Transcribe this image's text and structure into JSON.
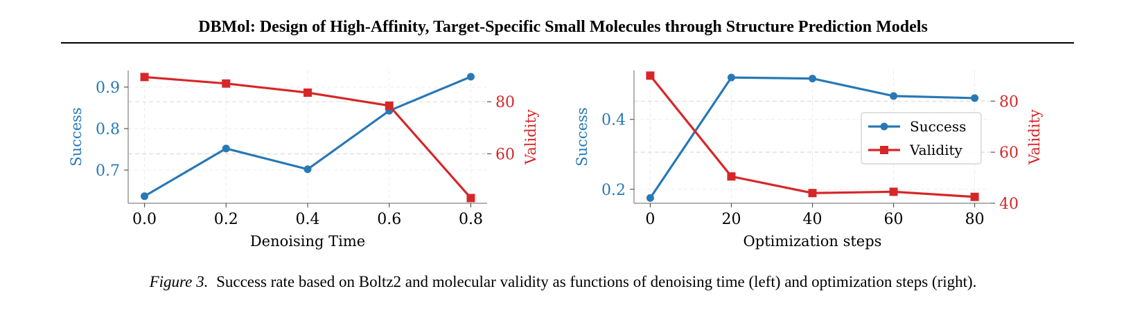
{
  "header": {
    "title": "DBMol: Design of High-Affinity, Target-Specific Small Molecules through Structure Prediction Models"
  },
  "colors": {
    "success": "#2878b5",
    "validity": "#d62728",
    "grid": "#dcdcdc",
    "spine": "#999999"
  },
  "chart_data": [
    {
      "type": "line",
      "xlabel": "Denoising Time",
      "ylabel_left": "Success",
      "ylabel_right": "Validity",
      "x": [
        0.0,
        0.2,
        0.4,
        0.6,
        0.8
      ],
      "xticks": [
        "0.0",
        "0.2",
        "0.4",
        "0.6",
        "0.8"
      ],
      "xlim": [
        -0.04,
        0.84
      ],
      "ylim_left": [
        0.62,
        0.94
      ],
      "yticks_left": [
        "0.7",
        "0.8",
        "0.9"
      ],
      "ylim_right": [
        41,
        92
      ],
      "yticks_right": [
        "60",
        "80"
      ],
      "grid": true,
      "legend": null,
      "series": [
        {
          "name": "Success",
          "axis": "left",
          "marker": "circle",
          "values": [
            0.637,
            0.752,
            0.702,
            0.843,
            0.925
          ]
        },
        {
          "name": "Validity",
          "axis": "right",
          "marker": "square",
          "values": [
            89.5,
            87.0,
            83.5,
            78.5,
            43.0
          ]
        }
      ]
    },
    {
      "type": "line",
      "xlabel": "Optimization steps",
      "ylabel_left": "Success",
      "ylabel_right": "Validity",
      "x": [
        0,
        20,
        40,
        60,
        80
      ],
      "xticks": [
        "0",
        "20",
        "40",
        "60",
        "80"
      ],
      "xlim": [
        -4,
        84
      ],
      "ylim_left": [
        0.16,
        0.54
      ],
      "yticks_left": [
        "0.2",
        "0.4"
      ],
      "ylim_right": [
        40,
        92
      ],
      "yticks_right": [
        "40",
        "60",
        "80"
      ],
      "grid": true,
      "legend": "right",
      "series": [
        {
          "name": "Success",
          "axis": "left",
          "marker": "circle",
          "values": [
            0.175,
            0.52,
            0.517,
            0.467,
            0.461
          ]
        },
        {
          "name": "Validity",
          "axis": "right",
          "marker": "square",
          "values": [
            90.0,
            50.5,
            44.0,
            44.5,
            42.5
          ]
        }
      ]
    }
  ],
  "caption": {
    "label": "Figure 3.",
    "text": "Success rate based on Boltz2 and molecular validity as functions of denoising time (left) and optimization steps (right)."
  }
}
